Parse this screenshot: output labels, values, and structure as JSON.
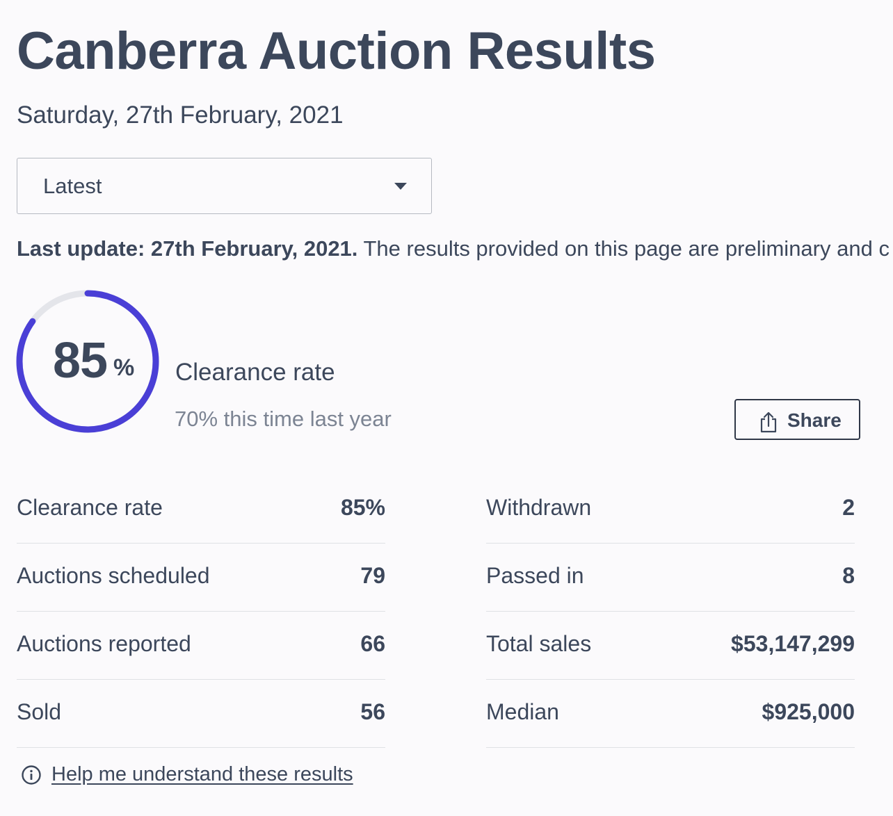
{
  "page": {
    "title": "Canberra Auction Results",
    "date": "Saturday, 27th February, 2021"
  },
  "filter": {
    "selected": "Latest"
  },
  "update": {
    "label": "Last update: 27th February, 2021.",
    "note": "The results provided on this page are preliminary and c"
  },
  "summary": {
    "rate_value": "85",
    "rate_unit": "%",
    "rate_fraction": 0.85,
    "label": "Clearance rate",
    "comparison": "70% this time last year",
    "accent_color": "#4a3fd6",
    "track_color": "#e4e5ea"
  },
  "share": {
    "label": "Share",
    "icon": "share-icon"
  },
  "stats_left": [
    {
      "label": "Clearance rate",
      "value": "85%"
    },
    {
      "label": "Auctions scheduled",
      "value": "79"
    },
    {
      "label": "Auctions reported",
      "value": "66"
    },
    {
      "label": "Sold",
      "value": "56"
    }
  ],
  "stats_right": [
    {
      "label": "Withdrawn",
      "value": "2"
    },
    {
      "label": "Passed in",
      "value": "8"
    },
    {
      "label": "Total sales",
      "value": "$53,147,299"
    },
    {
      "label": "Median",
      "value": "$925,000"
    }
  ],
  "help": {
    "icon": "info-icon",
    "link": "Help me understand these results"
  }
}
